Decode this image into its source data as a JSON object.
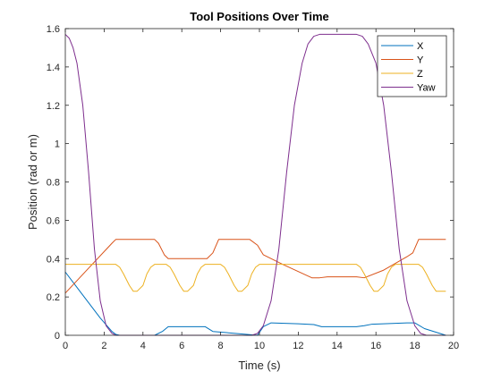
{
  "chart_data": {
    "type": "line",
    "title": "Tool Positions Over Time",
    "xlabel": "Time (s)",
    "ylabel": "Position (rad or m)",
    "xlim": [
      0,
      20
    ],
    "ylim": [
      0,
      1.6
    ],
    "xticks": [
      0,
      2,
      4,
      6,
      8,
      10,
      12,
      14,
      16,
      18,
      20
    ],
    "yticks": [
      0,
      0.2,
      0.4,
      0.6,
      0.8,
      1,
      1.2,
      1.4,
      1.6
    ],
    "grid": false,
    "legend_position": "top-right",
    "series": [
      {
        "name": "X",
        "color": "#0072BD",
        "x": [
          0,
          0.6,
          1.2,
          1.8,
          2.4,
          2.6,
          2.8,
          4.6,
          5.0,
          5.3,
          6.5,
          7.2,
          7.6,
          9.9,
          10.2,
          10.6,
          12.0,
          12.8,
          13.2,
          15.0,
          15.4,
          15.8,
          17.6,
          18.0,
          18.5,
          19.6
        ],
        "y": [
          0.33,
          0.25,
          0.17,
          0.09,
          0.02,
          0.005,
          0,
          0,
          0.02,
          0.045,
          0.045,
          0.045,
          0.02,
          0,
          0.045,
          0.065,
          0.06,
          0.056,
          0.045,
          0.045,
          0.05,
          0.058,
          0.065,
          0.065,
          0.035,
          0
        ]
      },
      {
        "name": "Y",
        "color": "#D95319",
        "x": [
          0,
          1.2,
          2.4,
          2.6,
          3.4,
          4.6,
          4.8,
          5.1,
          5.3,
          6.2,
          7.3,
          7.6,
          7.9,
          8.3,
          9.5,
          9.9,
          10.2,
          11.2,
          12.7,
          13.1,
          13.5,
          15.0,
          15.4,
          16.4,
          17.6,
          17.9,
          18.2,
          18.5,
          19.6
        ],
        "y": [
          0.22,
          0.35,
          0.48,
          0.5,
          0.5,
          0.5,
          0.48,
          0.42,
          0.4,
          0.4,
          0.4,
          0.43,
          0.5,
          0.5,
          0.5,
          0.47,
          0.42,
          0.37,
          0.3,
          0.3,
          0.305,
          0.305,
          0.3,
          0.34,
          0.41,
          0.43,
          0.5,
          0.5,
          0.5
        ]
      },
      {
        "name": "Z",
        "color": "#EDB120",
        "x": [
          0,
          2.6,
          2.8,
          3.0,
          3.3,
          3.5,
          3.7,
          4.0,
          4.2,
          4.4,
          4.6,
          5.2,
          5.4,
          5.6,
          5.9,
          6.1,
          6.3,
          6.6,
          6.8,
          7.0,
          7.2,
          8.0,
          8.2,
          8.4,
          8.7,
          8.9,
          9.1,
          9.4,
          9.6,
          9.8,
          10.0,
          15.0,
          15.2,
          15.4,
          15.7,
          15.9,
          16.1,
          16.4,
          16.6,
          16.8,
          17.0,
          18.2,
          18.4,
          18.6,
          18.9,
          19.1,
          19.3,
          19.6
        ],
        "y": [
          0.37,
          0.37,
          0.355,
          0.32,
          0.26,
          0.23,
          0.23,
          0.26,
          0.32,
          0.355,
          0.37,
          0.37,
          0.355,
          0.32,
          0.26,
          0.23,
          0.23,
          0.26,
          0.32,
          0.355,
          0.37,
          0.37,
          0.355,
          0.32,
          0.26,
          0.23,
          0.23,
          0.26,
          0.32,
          0.355,
          0.37,
          0.37,
          0.355,
          0.32,
          0.26,
          0.23,
          0.23,
          0.26,
          0.32,
          0.355,
          0.37,
          0.37,
          0.355,
          0.32,
          0.26,
          0.23,
          0.23,
          0.23
        ]
      },
      {
        "name": "Yaw",
        "color": "#7E2F8E",
        "x": [
          0,
          0.2,
          0.4,
          0.6,
          0.9,
          1.2,
          1.5,
          1.8,
          2.1,
          2.4,
          2.6,
          2.8,
          4.4,
          4.7,
          9.6,
          9.9,
          10.2,
          10.6,
          11.0,
          11.4,
          11.8,
          12.2,
          12.5,
          12.8,
          13.1,
          15.0,
          15.3,
          15.6,
          16.0,
          16.4,
          16.8,
          17.2,
          17.6,
          18.0,
          18.3,
          18.6,
          19.6
        ],
        "y": [
          1.57,
          1.55,
          1.5,
          1.42,
          1.2,
          0.85,
          0.45,
          0.18,
          0.05,
          0.01,
          0,
          0,
          0,
          0,
          0,
          0.01,
          0.05,
          0.18,
          0.45,
          0.85,
          1.2,
          1.42,
          1.52,
          1.56,
          1.57,
          1.57,
          1.56,
          1.52,
          1.42,
          1.2,
          0.85,
          0.45,
          0.18,
          0.05,
          0.01,
          0,
          0
        ]
      }
    ]
  }
}
